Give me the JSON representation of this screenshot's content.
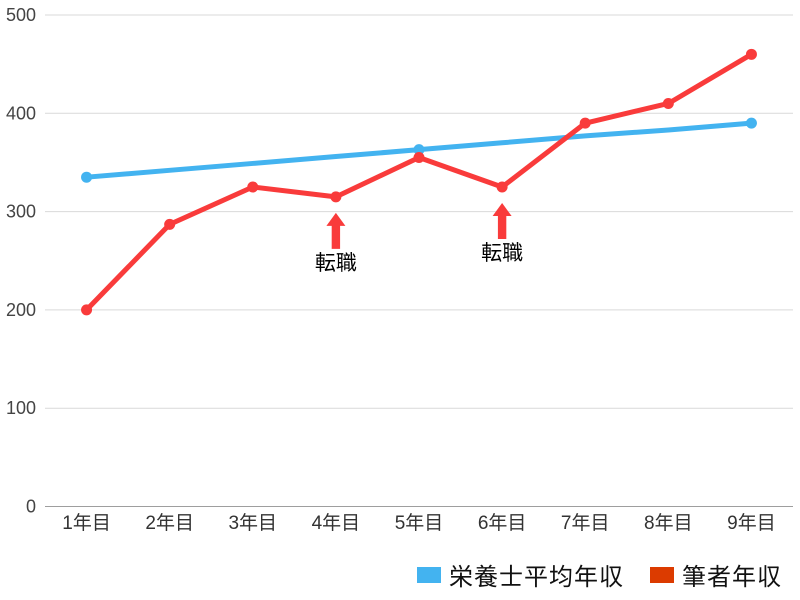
{
  "chart_data": {
    "type": "line",
    "title": "",
    "categories": [
      "1年目",
      "2年目",
      "3年目",
      "4年目",
      "5年目",
      "6年目",
      "7年目",
      "8年目",
      "9年目"
    ],
    "series": [
      {
        "name": "栄養士平均年収",
        "line_color": "#43b3f0",
        "legend_color": "#43b3f0",
        "values": [
          335,
          342,
          349,
          356,
          363,
          370,
          377,
          383,
          390
        ],
        "marker_indices": [
          0,
          4,
          8
        ]
      },
      {
        "name": "筆者年収",
        "line_color": "#f93b3b",
        "legend_color": "#dc3b00",
        "values": [
          200,
          287,
          325,
          315,
          355,
          325,
          390,
          410,
          460
        ],
        "marker_indices": [
          0,
          1,
          2,
          3,
          4,
          5,
          6,
          7,
          8
        ]
      }
    ],
    "annotations": [
      {
        "category": "4年目",
        "series": "筆者年収",
        "label": "転職",
        "arrow": "up",
        "arrow_color": "#f93b3b"
      },
      {
        "category": "6年目",
        "series": "筆者年収",
        "label": "転職",
        "arrow": "up",
        "arrow_color": "#f93b3b"
      }
    ],
    "y_axis": {
      "ticks": [
        0,
        100,
        200,
        300,
        400,
        500
      ],
      "range": [
        0,
        500
      ]
    },
    "xlabel": "",
    "ylabel": "",
    "grid": true,
    "legend_position": "bottom-right",
    "colors": {
      "background": "#ffffff",
      "gridline": "#d9d9d9",
      "baseline": "#9e9e9e",
      "tick_label": "#444444",
      "category_label": "#333333",
      "annotation_text": "#000000"
    }
  }
}
